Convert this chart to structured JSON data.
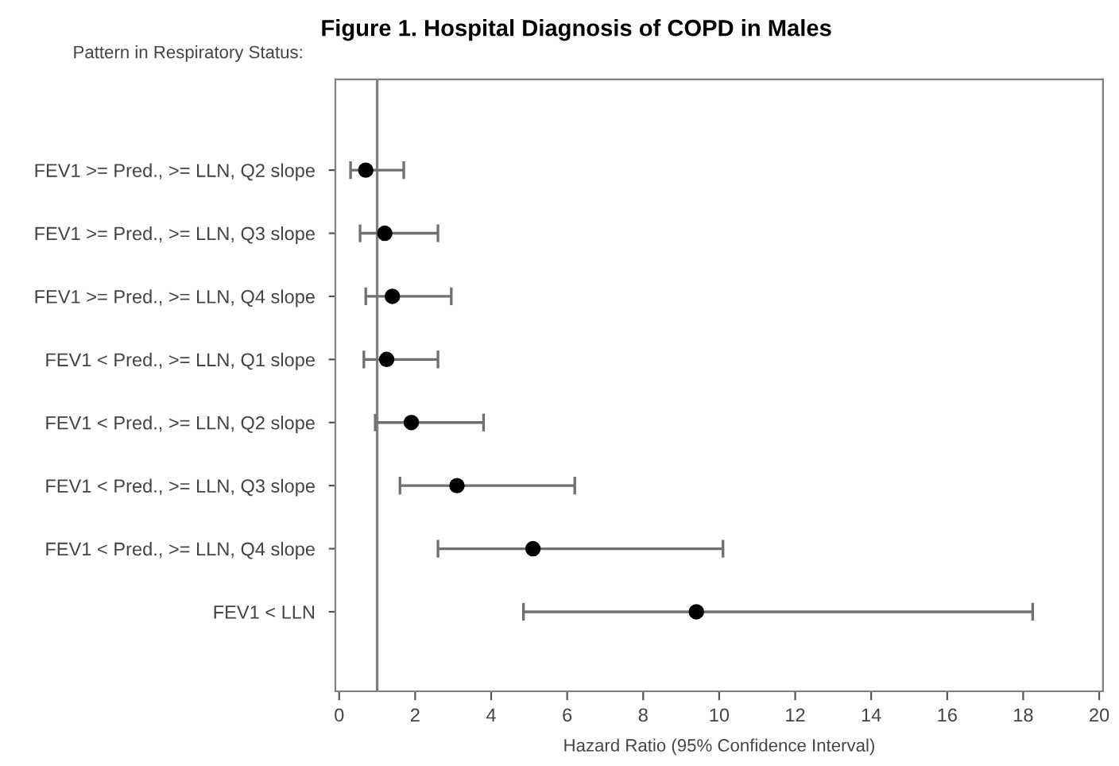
{
  "chart_data": {
    "type": "scatter",
    "orientation": "horizontal",
    "title": "Figure 1. Hospital Diagnosis of COPD in Males",
    "ylabel": "Pattern in Respiratory Status:",
    "xlabel": "Hazard Ratio (95% Confidence Interval)",
    "categories": [
      "FEV1 >= Pred., >= LLN, Q2 slope",
      "FEV1 >= Pred., >= LLN, Q3 slope",
      "FEV1 >= Pred., >= LLN, Q4 slope",
      "FEV1 < Pred., >= LLN, Q1 slope",
      "FEV1 < Pred., >= LLN, Q2 slope",
      "FEV1 < Pred., >= LLN, Q3 slope",
      "FEV1 < Pred., >= LLN, Q4 slope",
      "FEV1 < LLN"
    ],
    "series": [
      {
        "color": "#000000",
        "values": [
          0.7,
          1.2,
          1.4,
          1.25,
          1.9,
          3.1,
          5.1,
          9.4
        ],
        "errors": [
          [
            0.3,
            1.7
          ],
          [
            0.55,
            2.6
          ],
          [
            0.7,
            2.95
          ],
          [
            0.65,
            2.6
          ],
          [
            0.95,
            3.8
          ],
          [
            1.6,
            6.2
          ],
          [
            2.6,
            10.1
          ],
          [
            4.85,
            18.25
          ]
        ]
      }
    ],
    "xlim": [
      -0.1,
      20.1
    ],
    "xticks": [
      0,
      2,
      4,
      6,
      8,
      10,
      12,
      14,
      16,
      18,
      20
    ],
    "ref_lines": [
      {
        "axis": "x",
        "value": 1,
        "color": "#808080"
      }
    ],
    "marker": "circle",
    "grid": false,
    "legend": false
  }
}
